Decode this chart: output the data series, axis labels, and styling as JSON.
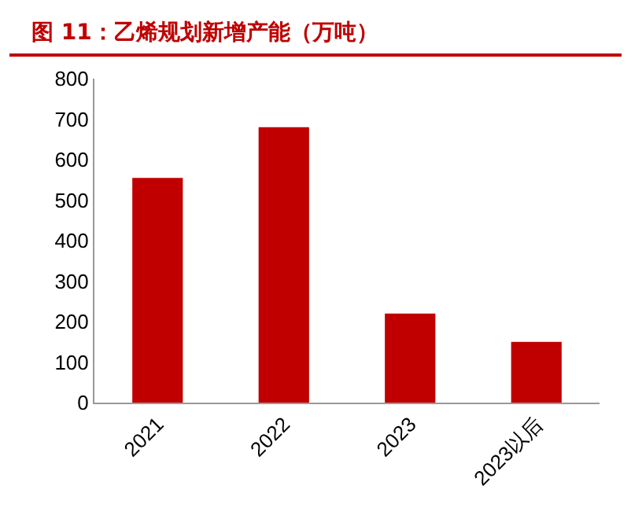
{
  "chart_data": {
    "type": "bar",
    "title": "图 11：乙烯规划新增产能（万吨）",
    "categories": [
      "2021",
      "2022",
      "2023",
      "2023以后"
    ],
    "values": [
      555,
      680,
      220,
      150
    ],
    "color": "#c00000",
    "ylim": [
      0,
      800
    ],
    "yticks": [
      0,
      100,
      200,
      300,
      400,
      500,
      600,
      700,
      800
    ],
    "grid": false,
    "legend": false
  }
}
